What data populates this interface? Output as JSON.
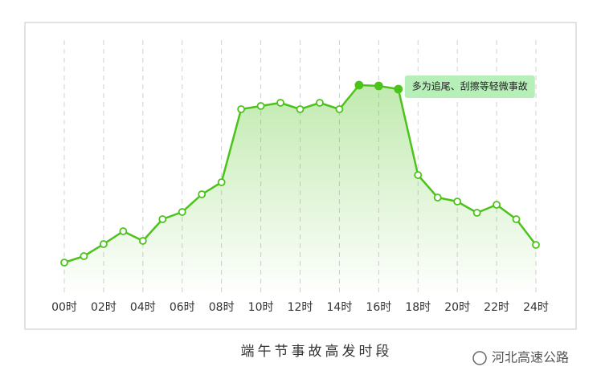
{
  "chart_data": {
    "type": "line",
    "title": "端午节事故高发时段",
    "categories": [
      "00时",
      null,
      "02时",
      null,
      "04时",
      null,
      "06时",
      null,
      "08时",
      null,
      "10时",
      null,
      "12时",
      null,
      "14时",
      null,
      "16时",
      null,
      "18时",
      null,
      "20时",
      null,
      "22时",
      null,
      "24时"
    ],
    "values": [
      33,
      41,
      56,
      72,
      60,
      87,
      96,
      118,
      133,
      224,
      228,
      232,
      224,
      232,
      224,
      254,
      253,
      249,
      142,
      114,
      109,
      95,
      105,
      87,
      55
    ],
    "color": "#4cc31a",
    "ylim": [
      0,
      280
    ],
    "highlight_indices": [
      15,
      16,
      17
    ],
    "annotation": "多为追尾、刮擦等轻微事故",
    "grid": true
  },
  "watermark": "河北高速公路"
}
